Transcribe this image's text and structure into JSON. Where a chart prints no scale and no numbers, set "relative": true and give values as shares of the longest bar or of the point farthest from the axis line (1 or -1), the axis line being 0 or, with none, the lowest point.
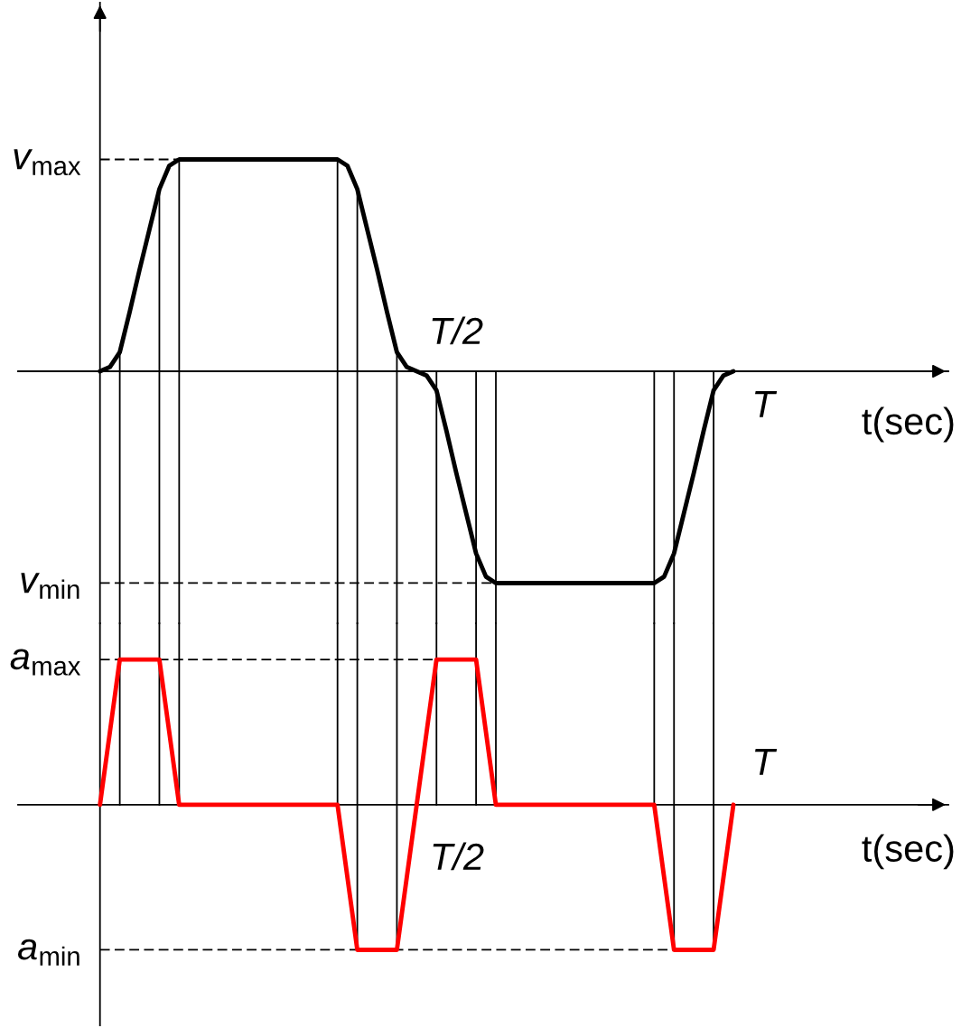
{
  "chart_data": [
    {
      "type": "line",
      "relative": true,
      "xlabel": "t(sec)",
      "grid": "x",
      "categories": [
        null,
        null,
        null,
        null,
        null,
        null,
        null,
        null,
        null,
        null,
        null,
        null,
        null,
        null,
        null,
        null,
        null,
        null,
        null,
        null,
        null,
        null,
        null,
        null,
        null,
        null,
        null,
        null,
        null,
        null,
        null,
        null,
        null,
        null,
        null,
        null,
        null,
        null,
        null,
        null,
        null,
        null,
        null,
        null,
        null,
        null,
        null,
        null,
        null,
        null,
        null,
        null,
        null,
        null,
        null,
        null,
        null,
        null,
        null,
        null,
        null,
        null,
        null,
        null,
        null
      ],
      "series": [
        {
          "color": "#000000",
          "values": [
            0,
            0.02,
            0.09,
            0.28,
            0.48,
            0.67,
            0.86,
            0.97,
            1,
            1,
            1,
            1,
            1,
            1,
            1,
            1,
            1,
            1,
            1,
            1,
            1,
            1,
            1,
            1,
            1,
            0.97,
            0.86,
            0.67,
            0.48,
            0.28,
            0.09,
            0.02,
            0,
            -0.02,
            -0.09,
            -0.28,
            -0.48,
            -0.67,
            -0.86,
            -0.97,
            -1,
            -1,
            -1,
            -1,
            -1,
            -1,
            -1,
            -1,
            -1,
            -1,
            -1,
            -1,
            -1,
            -1,
            -1,
            -1,
            -1,
            -0.97,
            -0.86,
            -0.67,
            -0.48,
            -0.28,
            -0.09,
            -0.02,
            0
          ]
        }
      ],
      "ref_lines": [
        {
          "axis": "y",
          "value": 1,
          "label": "v$_{max}$",
          "color": "#000000",
          "line_style": "dashed"
        },
        {
          "axis": "y",
          "value": -1,
          "label": "v$_{min}$",
          "color": "#000000",
          "line_style": "dashed"
        }
      ],
      "annotations": [
        "T/2",
        "T"
      ]
    },
    {
      "type": "line",
      "relative": true,
      "xlabel": "t(sec)",
      "grid": "x",
      "categories": [
        null,
        null,
        null,
        null,
        null,
        null,
        null,
        null,
        null,
        null,
        null,
        null,
        null,
        null,
        null,
        null,
        null,
        null,
        null,
        null,
        null,
        null,
        null,
        null,
        null,
        null,
        null,
        null,
        null,
        null,
        null,
        null,
        null,
        null,
        null,
        null,
        null,
        null,
        null,
        null,
        null,
        null,
        null,
        null,
        null,
        null,
        null,
        null,
        null,
        null,
        null,
        null,
        null,
        null,
        null,
        null,
        null,
        null,
        null,
        null,
        null,
        null,
        null,
        null,
        null
      ],
      "series": [
        {
          "color": "#ff0000",
          "values": [
            0,
            0.5,
            1,
            1,
            1,
            1,
            1,
            0.5,
            0,
            0,
            0,
            0,
            0,
            0,
            0,
            0,
            0,
            0,
            0,
            0,
            0,
            0,
            0,
            0,
            0,
            -0.5,
            -1,
            -1,
            -1,
            -1,
            -1,
            -0.5,
            0,
            0.5,
            1,
            1,
            1,
            1,
            1,
            0.5,
            0,
            0,
            0,
            0,
            0,
            0,
            0,
            0,
            0,
            0,
            0,
            0,
            0,
            0,
            0,
            0,
            0,
            -0.5,
            -1,
            -1,
            -1,
            -1,
            -1,
            -0.5,
            0
          ]
        }
      ],
      "ref_lines": [
        {
          "axis": "y",
          "value": 1,
          "label": "a$_{max}$",
          "color": "#000000",
          "line_style": "dashed"
        },
        {
          "axis": "y",
          "value": -1,
          "label": "a$_{min}$",
          "color": "#000000",
          "line_style": "dashed"
        }
      ],
      "annotations": [
        "T/2",
        "T"
      ]
    }
  ]
}
